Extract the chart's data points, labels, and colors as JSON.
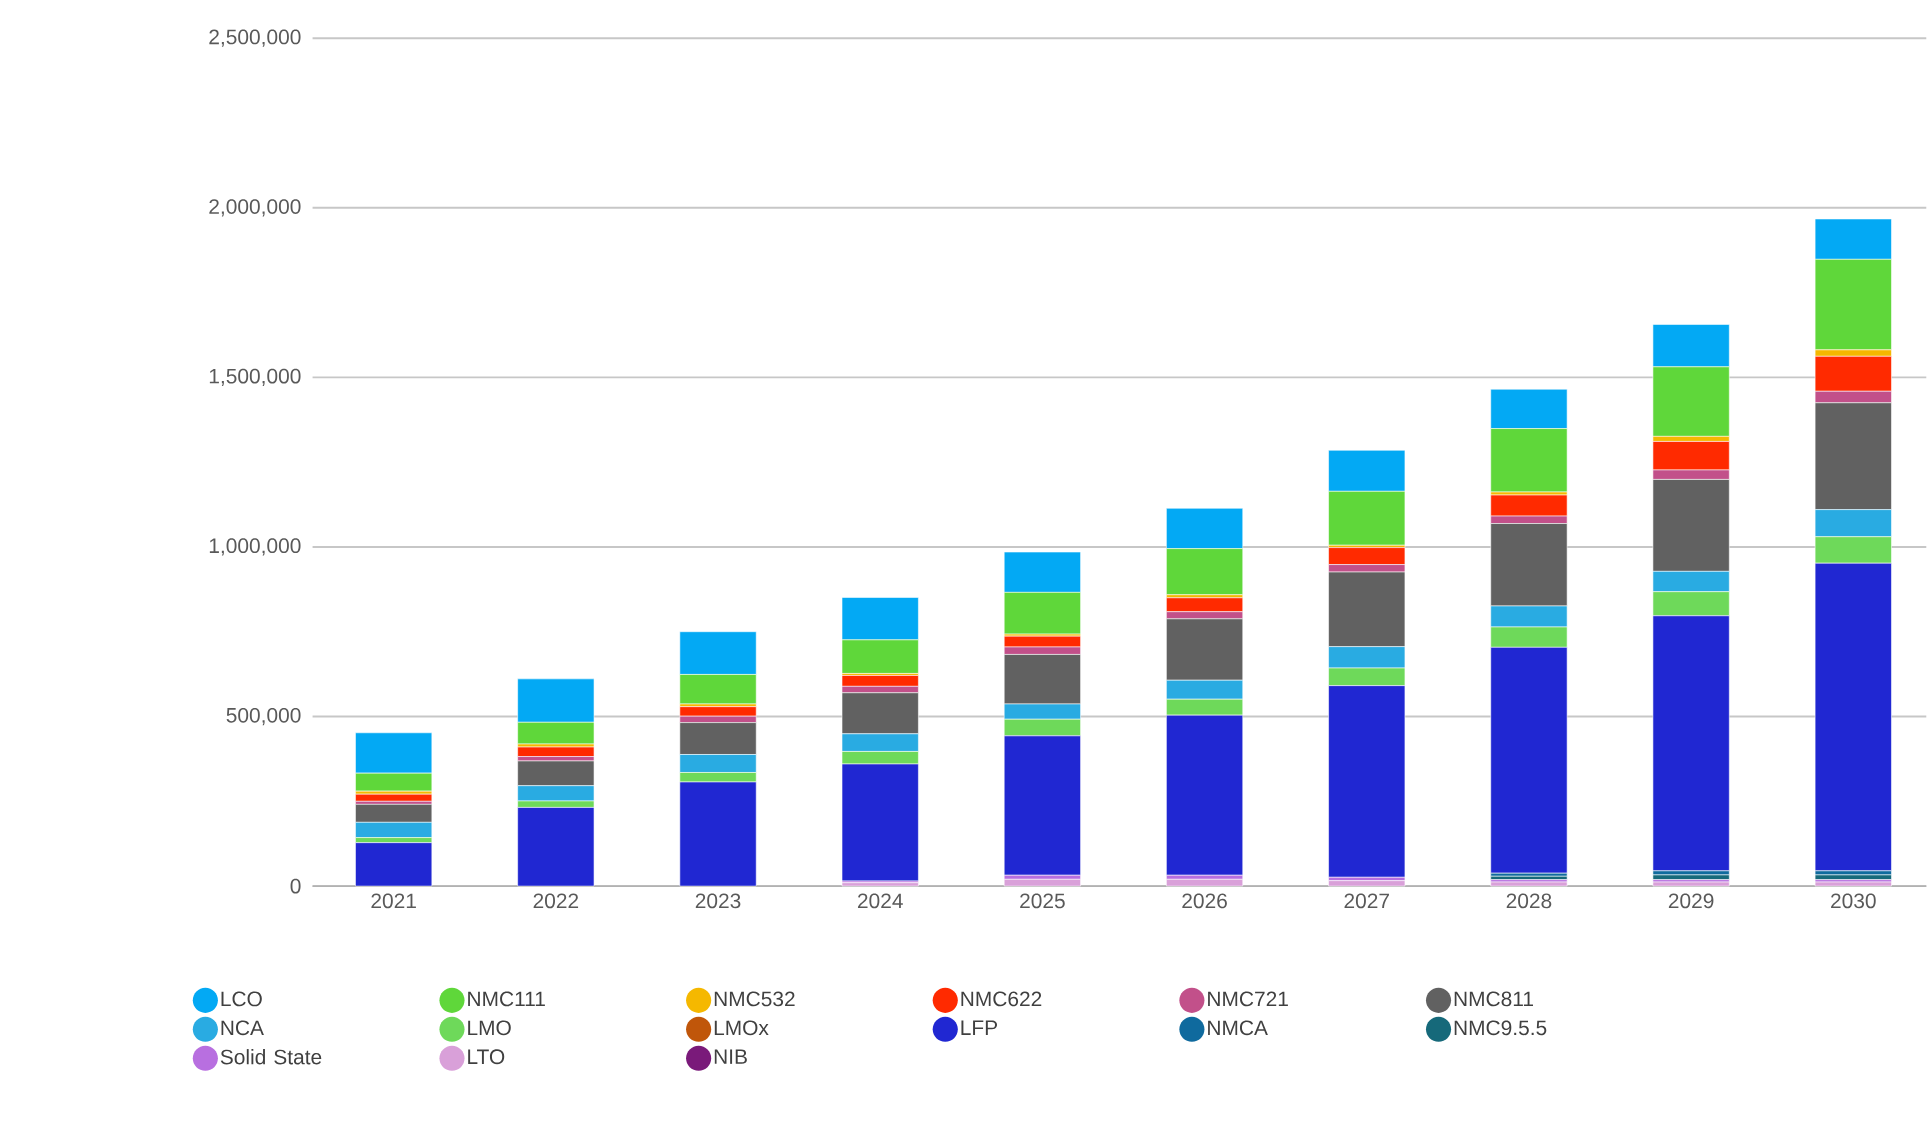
{
  "chart_data": {
    "type": "bar",
    "stacked": true,
    "grid": "y",
    "legend": "bottom",
    "categories": [
      "2021",
      "2022",
      "2023",
      "2024",
      "2025",
      "2026",
      "2027",
      "2028",
      "2029",
      "2030"
    ],
    "ylim": [
      0,
      2500000
    ],
    "yticks": [
      0,
      {
        "value": 500000,
        "label": "500,000"
      },
      {
        "value": 1000000,
        "label": "1,000,000"
      },
      {
        "value": 1500000,
        "label": "1,500,000"
      },
      {
        "value": 2000000,
        "label": "2,000,000"
      },
      {
        "value": 2500000,
        "label": "2,500,000"
      }
    ],
    "series": [
      {
        "name": "NIB",
        "color": "#7a1a7a",
        "values": [
          0,
          0,
          0,
          0,
          0,
          0,
          0,
          0,
          0,
          0
        ]
      },
      {
        "name": "LTO",
        "color": "#d9a0d9",
        "values": [
          0,
          0,
          0,
          10000,
          20000,
          20000,
          16000,
          12000,
          12000,
          12000
        ]
      },
      {
        "name": "Solid State",
        "color": "#b86fe0",
        "values": [
          0,
          0,
          0,
          5000,
          12000,
          12000,
          10000,
          7000,
          7000,
          7000
        ]
      },
      {
        "name": "NMC9.5.5",
        "color": "#16697a",
        "values": [
          0,
          0,
          0,
          0,
          0,
          0,
          0,
          10000,
          14000,
          14000
        ]
      },
      {
        "name": "NMCA",
        "color": "#0f6a9e",
        "values": [
          0,
          0,
          0,
          0,
          0,
          0,
          0,
          9000,
          12000,
          12000
        ]
      },
      {
        "name": "LFP",
        "color": "#2027d2",
        "values": [
          128000,
          232000,
          307000,
          345000,
          411000,
          472000,
          565000,
          666000,
          752000,
          907000
        ]
      },
      {
        "name": "LMOx",
        "color": "#c0560a",
        "values": [
          0,
          0,
          0,
          0,
          0,
          0,
          0,
          0,
          0,
          0
        ]
      },
      {
        "name": "LMO",
        "color": "#6ed95a",
        "values": [
          15000,
          19000,
          28000,
          37000,
          49000,
          47000,
          52000,
          60000,
          71000,
          78000
        ]
      },
      {
        "name": "NCA",
        "color": "#29abe2",
        "values": [
          45000,
          45000,
          53000,
          52000,
          45000,
          56000,
          63000,
          62000,
          60000,
          80000
        ]
      },
      {
        "name": "NMC811",
        "color": "#616161",
        "values": [
          53000,
          73000,
          94000,
          121000,
          146000,
          181000,
          220000,
          243000,
          271000,
          315000
        ]
      },
      {
        "name": "NMC721",
        "color": "#c2508a",
        "values": [
          9000,
          13000,
          19000,
          19000,
          22000,
          21000,
          22000,
          22000,
          28000,
          34000
        ]
      },
      {
        "name": "NMC622",
        "color": "#ff2a00",
        "values": [
          21000,
          28000,
          28000,
          32000,
          32000,
          41000,
          50000,
          62000,
          84000,
          103000
        ]
      },
      {
        "name": "NMC532",
        "color": "#f5b800",
        "values": [
          9000,
          9000,
          8000,
          6000,
          6000,
          9000,
          7000,
          9000,
          15000,
          19000
        ]
      },
      {
        "name": "NMC111",
        "color": "#5fd73a",
        "values": [
          53000,
          64000,
          87000,
          99000,
          123000,
          136000,
          159000,
          187000,
          205000,
          267000
        ]
      },
      {
        "name": "LCO",
        "color": "#03a9f4",
        "values": [
          119000,
          128000,
          126000,
          125000,
          119000,
          119000,
          121000,
          116000,
          125000,
          119000
        ]
      }
    ]
  }
}
